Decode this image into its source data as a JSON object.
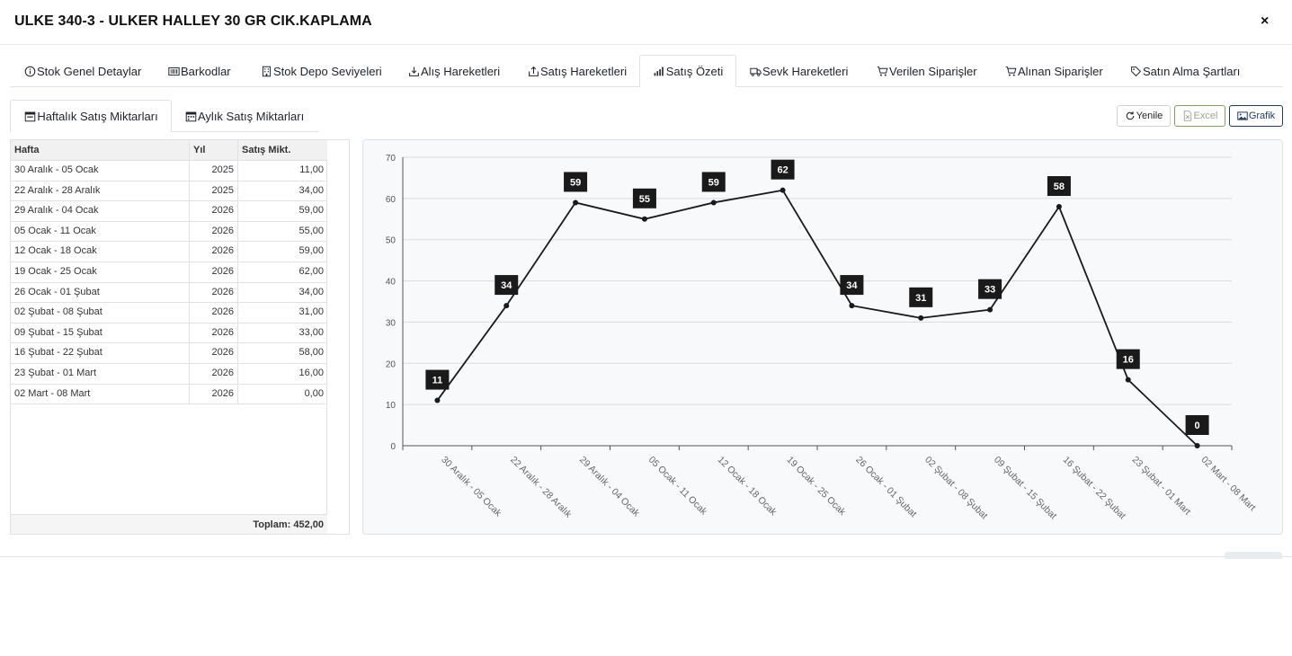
{
  "modal": {
    "title": "ULKE 340-3 - ULKER HALLEY 30 GR CIK.KAPLAMA",
    "close_label": "×"
  },
  "main_tabs": [
    {
      "label": "Stok Genel Detaylar",
      "icon": "info-icon",
      "active": false
    },
    {
      "label": "Barkodlar",
      "icon": "barcode-icon",
      "active": false
    },
    {
      "label": "Stok Depo Seviyeleri",
      "icon": "building-icon",
      "active": false
    },
    {
      "label": "Alış Hareketleri",
      "icon": "download-icon",
      "active": false
    },
    {
      "label": "Satış Hareketleri",
      "icon": "upload-icon",
      "active": false
    },
    {
      "label": "Satış Özeti",
      "icon": "bar-chart-icon",
      "active": true
    },
    {
      "label": "Sevk Hareketleri",
      "icon": "truck-icon",
      "active": false
    },
    {
      "label": "Verilen Siparişler",
      "icon": "cart-icon",
      "active": false
    },
    {
      "label": "Alınan Siparişler",
      "icon": "cart-icon",
      "active": false
    },
    {
      "label": "Satın Alma Şartları",
      "icon": "tag-icon",
      "active": false
    }
  ],
  "sub_tabs": [
    {
      "label": "Haftalık Satış Miktarları",
      "icon": "calendar-week-icon",
      "active": true
    },
    {
      "label": "Aylık Satış Miktarları",
      "icon": "calendar-month-icon",
      "active": false
    }
  ],
  "toolbar": {
    "refresh_label": "Yenile",
    "excel_label": "Excel",
    "chart_label": "Grafik"
  },
  "table": {
    "headers": [
      "Hafta",
      "Yıl",
      "Satış Mikt."
    ],
    "rows": [
      {
        "week": "30 Aralık - 05 Ocak",
        "year": "2025",
        "qty": "11,00"
      },
      {
        "week": "22 Aralık - 28 Aralık",
        "year": "2025",
        "qty": "34,00"
      },
      {
        "week": "29 Aralık - 04 Ocak",
        "year": "2026",
        "qty": "59,00"
      },
      {
        "week": "05 Ocak - 11 Ocak",
        "year": "2026",
        "qty": "55,00"
      },
      {
        "week": "12 Ocak - 18 Ocak",
        "year": "2026",
        "qty": "59,00"
      },
      {
        "week": "19 Ocak - 25 Ocak",
        "year": "2026",
        "qty": "62,00"
      },
      {
        "week": "26 Ocak - 01 Şubat",
        "year": "2026",
        "qty": "34,00"
      },
      {
        "week": "02 Şubat - 08 Şubat",
        "year": "2026",
        "qty": "31,00"
      },
      {
        "week": "09 Şubat - 15 Şubat",
        "year": "2026",
        "qty": "33,00"
      },
      {
        "week": "16 Şubat - 22 Şubat",
        "year": "2026",
        "qty": "58,00"
      },
      {
        "week": "23 Şubat - 01 Mart",
        "year": "2026",
        "qty": "16,00"
      },
      {
        "week": "02 Mart - 08 Mart",
        "year": "2026",
        "qty": "0,00"
      }
    ],
    "total_label": "Toplam: 452,00"
  },
  "chart_data": {
    "type": "line",
    "categories": [
      "30 Aralık - 05 Ocak",
      "22 Aralık - 28 Aralık",
      "29 Aralık - 04 Ocak",
      "05 Ocak - 11 Ocak",
      "12 Ocak - 18 Ocak",
      "19 Ocak - 25 Ocak",
      "26 Ocak - 01 Şubat",
      "02 Şubat - 08 Şubat",
      "09 Şubat - 15 Şubat",
      "16 Şubat - 22 Şubat",
      "23 Şubat - 01 Mart",
      "02 Mart - 08 Mart"
    ],
    "values": [
      11,
      34,
      59,
      55,
      59,
      62,
      34,
      31,
      33,
      58,
      16,
      0
    ],
    "ylim": [
      0,
      70
    ],
    "yticks": [
      0,
      10,
      20,
      30,
      40,
      50,
      60,
      70
    ],
    "grid": true,
    "title": "",
    "xlabel": "",
    "ylabel": "",
    "line_color": "#1a1a1a",
    "label_bg": "#1a1a1a"
  },
  "colors": {
    "accent": "#1f3b64",
    "excel_border": "#7aa35c"
  }
}
